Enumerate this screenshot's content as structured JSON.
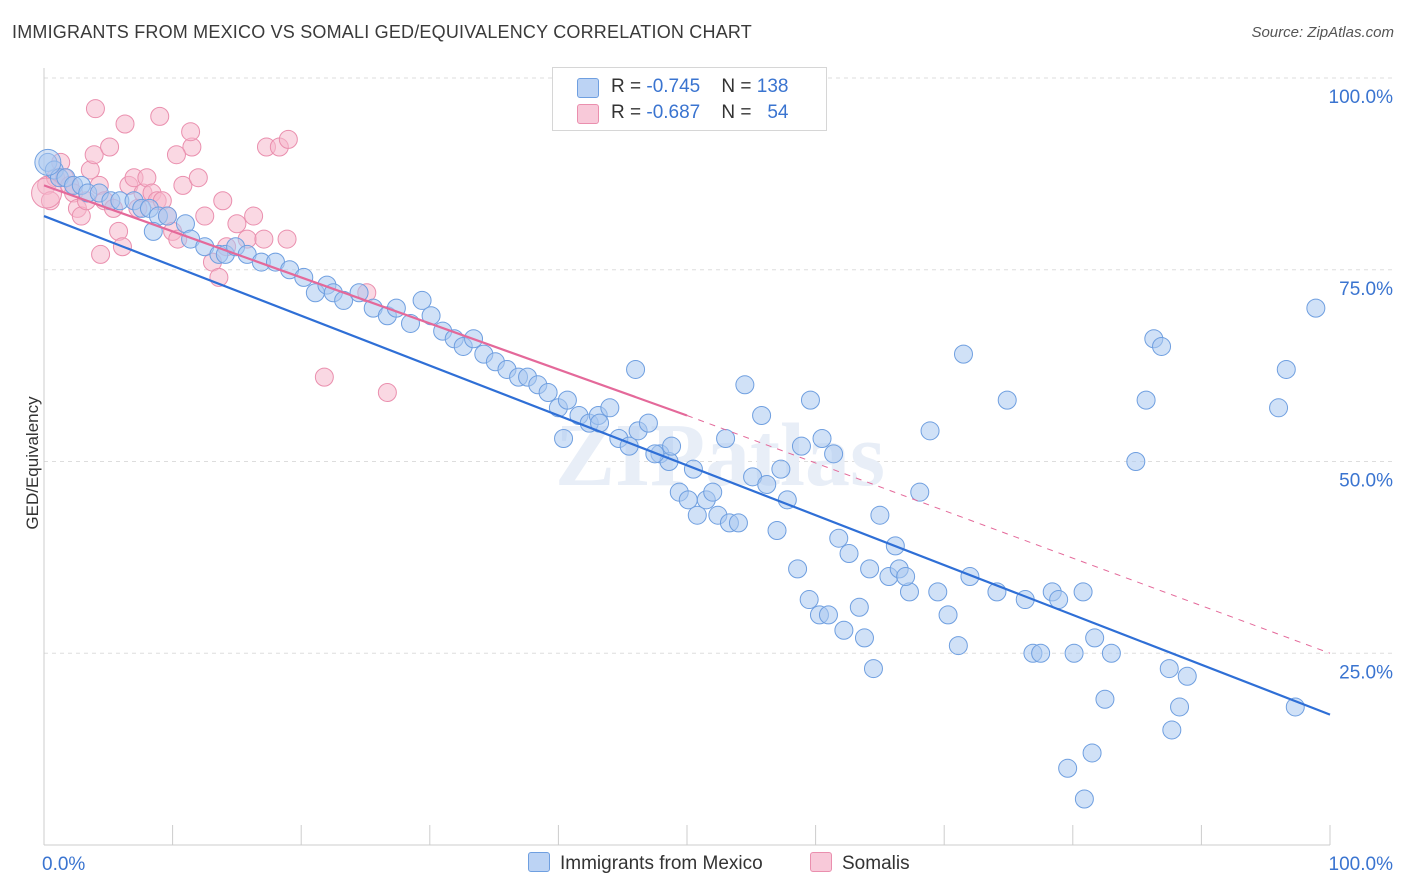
{
  "title": "IMMIGRANTS FROM MEXICO VS SOMALI GED/EQUIVALENCY CORRELATION CHART",
  "source": "Source: ZipAtlas.com",
  "watermark": "ZIPatlas",
  "legend": {
    "row1": {
      "r_label": "R = ",
      "r_value": "-0.745",
      "n_label": "N = ",
      "n_value": "138"
    },
    "row2": {
      "r_label": "R = ",
      "r_value": "-0.687",
      "n_label": "N = ",
      "n_value": "54"
    }
  },
  "bottom_legend": {
    "series1": "Immigrants from Mexico",
    "series2": "Somalis"
  },
  "colors": {
    "blue_fill": "#a9c8f0",
    "blue_stroke": "#6f9fe0",
    "blue_line": "#2f6fd6",
    "pink_fill": "#f5b8cc",
    "pink_stroke": "#ea8fae",
    "pink_line": "#e4699a",
    "axis_text": "#3a74d0",
    "grid": "#dddddd"
  },
  "chart_data": {
    "type": "scatter",
    "title": "IMMIGRANTS FROM MEXICO VS SOMALI GED/EQUIVALENCY CORRELATION CHART",
    "xlabel": "",
    "ylabel": "GED/Equivalency",
    "xlim": [
      0,
      100
    ],
    "ylim": [
      0,
      100
    ],
    "x_ticks_labels": [
      "0.0%",
      "100.0%"
    ],
    "y_ticks": [
      25,
      50,
      75,
      100
    ],
    "y_ticks_labels": [
      "25.0%",
      "50.0%",
      "75.0%",
      "100.0%"
    ],
    "grid": true,
    "legend_position": "top-center",
    "series": [
      {
        "name": "Immigrants from Mexico",
        "color": "#a9c8f0",
        "trend": {
          "x": [
            0,
            100
          ],
          "y": [
            82,
            17
          ]
        },
        "points": [
          [
            0.3,
            89
          ],
          [
            0.8,
            88
          ],
          [
            1.2,
            87
          ],
          [
            1.7,
            87
          ],
          [
            2.3,
            86
          ],
          [
            2.9,
            86
          ],
          [
            3.4,
            85
          ],
          [
            4.3,
            85
          ],
          [
            5.2,
            84
          ],
          [
            5.9,
            84
          ],
          [
            7.0,
            84
          ],
          [
            7.6,
            83
          ],
          [
            8.2,
            83
          ],
          [
            8.9,
            82
          ],
          [
            9.6,
            82
          ],
          [
            11.0,
            81
          ],
          [
            8.5,
            80
          ],
          [
            11.4,
            79
          ],
          [
            12.5,
            78
          ],
          [
            13.6,
            77
          ],
          [
            14.1,
            77
          ],
          [
            14.9,
            78
          ],
          [
            15.8,
            77
          ],
          [
            16.9,
            76
          ],
          [
            18.0,
            76
          ],
          [
            19.1,
            75
          ],
          [
            20.2,
            74
          ],
          [
            21.1,
            72
          ],
          [
            22.0,
            73
          ],
          [
            22.5,
            72
          ],
          [
            23.3,
            71
          ],
          [
            24.5,
            72
          ],
          [
            25.6,
            70
          ],
          [
            26.7,
            69
          ],
          [
            27.4,
            70
          ],
          [
            28.5,
            68
          ],
          [
            29.4,
            71
          ],
          [
            30.1,
            69
          ],
          [
            31.0,
            67
          ],
          [
            31.9,
            66
          ],
          [
            32.6,
            65
          ],
          [
            33.4,
            66
          ],
          [
            34.2,
            64
          ],
          [
            35.1,
            63
          ],
          [
            36.0,
            62
          ],
          [
            36.9,
            61
          ],
          [
            37.6,
            61
          ],
          [
            38.4,
            60
          ],
          [
            39.2,
            59
          ],
          [
            40.0,
            57
          ],
          [
            40.7,
            58
          ],
          [
            41.6,
            56
          ],
          [
            42.4,
            55
          ],
          [
            43.1,
            56
          ],
          [
            44.0,
            57
          ],
          [
            44.7,
            53
          ],
          [
            45.5,
            52
          ],
          [
            46.2,
            54
          ],
          [
            47.0,
            55
          ],
          [
            47.9,
            51
          ],
          [
            48.6,
            50
          ],
          [
            49.4,
            46
          ],
          [
            50.1,
            45
          ],
          [
            50.8,
            43
          ],
          [
            51.5,
            45
          ],
          [
            52.4,
            43
          ],
          [
            53.3,
            42
          ],
          [
            54.0,
            42
          ],
          [
            55.1,
            48
          ],
          [
            56.2,
            47
          ],
          [
            57.0,
            41
          ],
          [
            57.8,
            45
          ],
          [
            58.6,
            36
          ],
          [
            59.5,
            32
          ],
          [
            60.3,
            30
          ],
          [
            61.0,
            30
          ],
          [
            61.8,
            40
          ],
          [
            62.6,
            38
          ],
          [
            63.4,
            31
          ],
          [
            64.2,
            36
          ],
          [
            65.0,
            43
          ],
          [
            65.7,
            35
          ],
          [
            66.5,
            36
          ],
          [
            67.3,
            33
          ],
          [
            68.1,
            46
          ],
          [
            68.9,
            54
          ],
          [
            69.5,
            33
          ],
          [
            70.3,
            30
          ],
          [
            71.1,
            26
          ],
          [
            72.0,
            35
          ],
          [
            40.4,
            53
          ],
          [
            43.2,
            55
          ],
          [
            46.0,
            62
          ],
          [
            47.5,
            51
          ],
          [
            48.8,
            52
          ],
          [
            50.5,
            49
          ],
          [
            52.0,
            46
          ],
          [
            53.0,
            53
          ],
          [
            54.5,
            60
          ],
          [
            55.8,
            56
          ],
          [
            57.3,
            49
          ],
          [
            58.9,
            52
          ],
          [
            59.6,
            58
          ],
          [
            60.5,
            53
          ],
          [
            61.4,
            51
          ],
          [
            62.2,
            28
          ],
          [
            63.8,
            27
          ],
          [
            64.5,
            23
          ],
          [
            66.2,
            39
          ],
          [
            67.0,
            35
          ],
          [
            71.5,
            64
          ],
          [
            74.1,
            33
          ],
          [
            74.9,
            58
          ],
          [
            76.3,
            32
          ],
          [
            76.9,
            25
          ],
          [
            77.5,
            25
          ],
          [
            78.4,
            33
          ],
          [
            78.9,
            32
          ],
          [
            80.8,
            33
          ],
          [
            81.7,
            27
          ],
          [
            80.1,
            25
          ],
          [
            82.5,
            19
          ],
          [
            83.0,
            25
          ],
          [
            84.9,
            50
          ],
          [
            85.7,
            58
          ],
          [
            86.3,
            66
          ],
          [
            86.9,
            65
          ],
          [
            87.5,
            23
          ],
          [
            88.3,
            18
          ],
          [
            88.9,
            22
          ],
          [
            96.0,
            57
          ],
          [
            96.6,
            62
          ],
          [
            97.3,
            18
          ],
          [
            98.9,
            70
          ],
          [
            87.7,
            15
          ],
          [
            79.6,
            10
          ],
          [
            80.9,
            6
          ],
          [
            81.5,
            12
          ]
        ]
      },
      {
        "name": "Somalis",
        "color": "#f5b8cc",
        "trend": {
          "x": [
            0,
            50
          ],
          "y": [
            86,
            56
          ],
          "dashed_extension_to": [
            100,
            25
          ]
        },
        "points": [
          [
            0.2,
            86
          ],
          [
            0.5,
            84
          ],
          [
            0.9,
            87
          ],
          [
            1.3,
            89
          ],
          [
            1.6,
            87
          ],
          [
            2.0,
            86
          ],
          [
            2.3,
            85
          ],
          [
            2.6,
            83
          ],
          [
            2.9,
            82
          ],
          [
            3.3,
            84
          ],
          [
            3.6,
            88
          ],
          [
            3.9,
            90
          ],
          [
            4.3,
            86
          ],
          [
            4.7,
            84
          ],
          [
            5.1,
            91
          ],
          [
            5.4,
            83
          ],
          [
            5.8,
            80
          ],
          [
            6.1,
            78
          ],
          [
            6.6,
            86
          ],
          [
            7.0,
            87
          ],
          [
            7.3,
            83
          ],
          [
            7.7,
            85
          ],
          [
            8.0,
            87
          ],
          [
            8.4,
            85
          ],
          [
            8.8,
            84
          ],
          [
            9.2,
            84
          ],
          [
            9.6,
            82
          ],
          [
            10.0,
            80
          ],
          [
            10.4,
            79
          ],
          [
            10.8,
            86
          ],
          [
            11.5,
            91
          ],
          [
            12.0,
            87
          ],
          [
            12.5,
            82
          ],
          [
            13.1,
            76
          ],
          [
            13.6,
            74
          ],
          [
            14.2,
            78
          ],
          [
            15.0,
            81
          ],
          [
            16.3,
            82
          ],
          [
            17.3,
            91
          ],
          [
            18.3,
            91
          ],
          [
            18.9,
            79
          ],
          [
            4.4,
            77
          ],
          [
            6.3,
            94
          ],
          [
            9.0,
            95
          ],
          [
            10.3,
            90
          ],
          [
            11.4,
            93
          ],
          [
            13.9,
            84
          ],
          [
            15.8,
            79
          ],
          [
            17.1,
            79
          ],
          [
            19.0,
            92
          ],
          [
            21.8,
            61
          ],
          [
            25.1,
            72
          ],
          [
            26.7,
            59
          ],
          [
            4.0,
            96
          ]
        ]
      }
    ]
  }
}
